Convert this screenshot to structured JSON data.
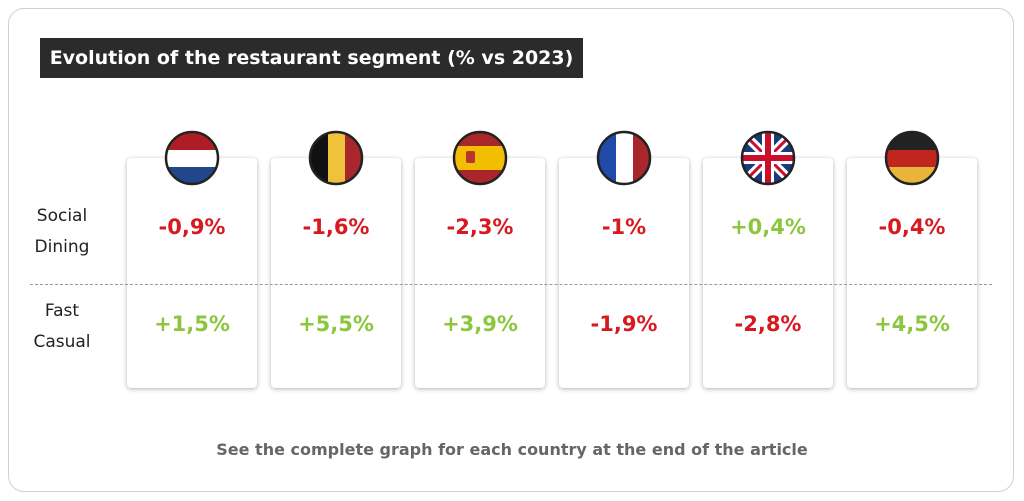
{
  "title": "Evolution of the restaurant segment (% vs 2023)",
  "rows": [
    {
      "label": "Social Dining",
      "cells": [
        "-0,9%",
        "-1,6%",
        "-2,3%",
        "-1%",
        "+0,4%",
        "-0,4%"
      ]
    },
    {
      "label": "Fast Casual",
      "cells": [
        "+1,5%",
        "+5,5%",
        "+3,9%",
        "-1,9%",
        "-2,8%",
        "+4,5%"
      ]
    }
  ],
  "footer": "See the complete graph for each country at the end of the article"
}
